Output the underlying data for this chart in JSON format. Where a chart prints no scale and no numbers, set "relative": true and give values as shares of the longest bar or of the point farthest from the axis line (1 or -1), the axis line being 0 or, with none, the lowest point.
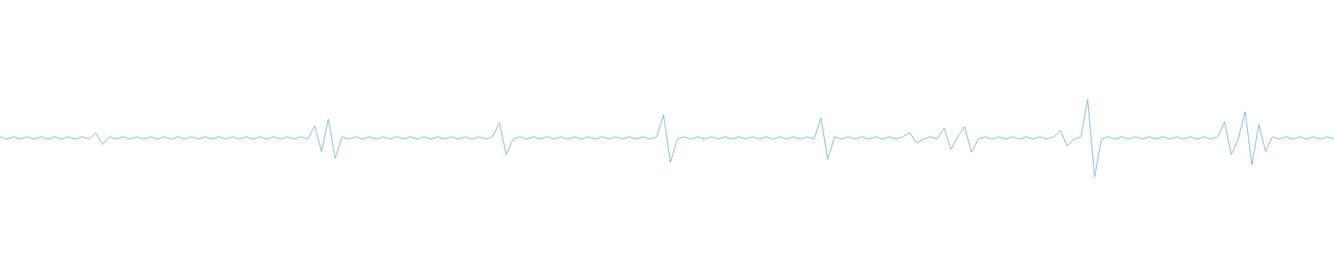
{
  "chart_data": {
    "type": "line",
    "relative": true,
    "color": "#5dade2",
    "categories": [
      null,
      null,
      null,
      null,
      null,
      null,
      null,
      null,
      null,
      null,
      null,
      null,
      null,
      null,
      null,
      null,
      null,
      null,
      null,
      null,
      null,
      null,
      null,
      null,
      null,
      null,
      null,
      null,
      null,
      null,
      null,
      null,
      null,
      null,
      null,
      null,
      null,
      null,
      null,
      null,
      null,
      null,
      null,
      null,
      null,
      null,
      null,
      null,
      null,
      null,
      null,
      null,
      null,
      null,
      null,
      null,
      null,
      null,
      null,
      null,
      null,
      null,
      null,
      null,
      null,
      null,
      null,
      null,
      null,
      null,
      null,
      null,
      null,
      null,
      null,
      null,
      null,
      null,
      null,
      null,
      null,
      null,
      null,
      null,
      null,
      null,
      null,
      null,
      null,
      null,
      null,
      null,
      null,
      null,
      null,
      null,
      null,
      null,
      null,
      null,
      null,
      null,
      null,
      null,
      null,
      null,
      null,
      null,
      null,
      null,
      null,
      null,
      null,
      null,
      null,
      null,
      null,
      null,
      null,
      null,
      null,
      null,
      null,
      null,
      null,
      null,
      null,
      null,
      null,
      null,
      null,
      null,
      null,
      null,
      null,
      null,
      null,
      null,
      null,
      null,
      null,
      null,
      null,
      null,
      null,
      null,
      null,
      null,
      null,
      null,
      null,
      null,
      null,
      null,
      null,
      null,
      null,
      null,
      null,
      null,
      null,
      null,
      null,
      null,
      null,
      null,
      null,
      null,
      null,
      null,
      null,
      null,
      null,
      null,
      null,
      null,
      null,
      null,
      null,
      null,
      null,
      null,
      null,
      null,
      null,
      null,
      null,
      null,
      null,
      null,
      null,
      null,
      null,
      null,
      null,
      null
    ],
    "values": [
      0.52,
      0.49,
      0.52,
      0.49,
      0.52,
      0.49,
      0.52,
      0.49,
      0.52,
      0.49,
      0.52,
      0.49,
      0.52,
      0.49,
      0.57,
      0.42,
      0.52,
      0.49,
      0.52,
      0.49,
      0.52,
      0.49,
      0.52,
      0.49,
      0.52,
      0.49,
      0.52,
      0.49,
      0.52,
      0.49,
      0.52,
      0.49,
      0.52,
      0.49,
      0.52,
      0.49,
      0.52,
      0.49,
      0.52,
      0.49,
      0.52,
      0.49,
      0.52,
      0.49,
      0.52,
      0.49,
      0.66,
      0.33,
      0.75,
      0.24,
      0.52,
      0.49,
      0.52,
      0.49,
      0.52,
      0.49,
      0.52,
      0.49,
      0.52,
      0.49,
      0.52,
      0.49,
      0.52,
      0.49,
      0.52,
      0.49,
      0.52,
      0.49,
      0.52,
      0.49,
      0.52,
      0.49,
      0.52,
      0.7,
      0.29,
      0.49,
      0.52,
      0.49,
      0.52,
      0.49,
      0.52,
      0.49,
      0.52,
      0.49,
      0.52,
      0.49,
      0.52,
      0.49,
      0.52,
      0.49,
      0.52,
      0.49,
      0.52,
      0.49,
      0.52,
      0.49,
      0.52,
      0.8,
      0.19,
      0.49,
      0.52,
      0.49,
      0.52,
      0.49,
      0.52,
      0.49,
      0.52,
      0.49,
      0.52,
      0.49,
      0.52,
      0.49,
      0.52,
      0.49,
      0.52,
      0.49,
      0.52,
      0.49,
      0.52,
      0.49,
      0.76,
      0.23,
      0.52,
      0.49,
      0.52,
      0.49,
      0.52,
      0.49,
      0.52,
      0.49,
      0.52,
      0.49,
      0.52,
      0.57,
      0.44,
      0.49,
      0.52,
      0.49,
      0.63,
      0.36,
      0.52,
      0.65,
      0.32,
      0.49,
      0.52,
      0.49,
      0.52,
      0.49,
      0.52,
      0.49,
      0.52,
      0.49,
      0.52,
      0.49,
      0.52,
      0.6,
      0.4,
      0.49,
      0.52,
      1,
      0,
      0.49,
      0.52,
      0.49,
      0.52,
      0.49,
      0.52,
      0.49,
      0.52,
      0.49,
      0.52,
      0.49,
      0.52,
      0.49,
      0.52,
      0.49,
      0.52,
      0.49,
      0.52,
      0.71,
      0.29,
      0.49,
      0.84,
      0.16,
      0.68,
      0.33,
      0.52,
      0.49,
      0.52,
      0.49,
      0.52,
      0.49,
      0.52,
      0.49,
      0.52,
      0.49
    ]
  }
}
